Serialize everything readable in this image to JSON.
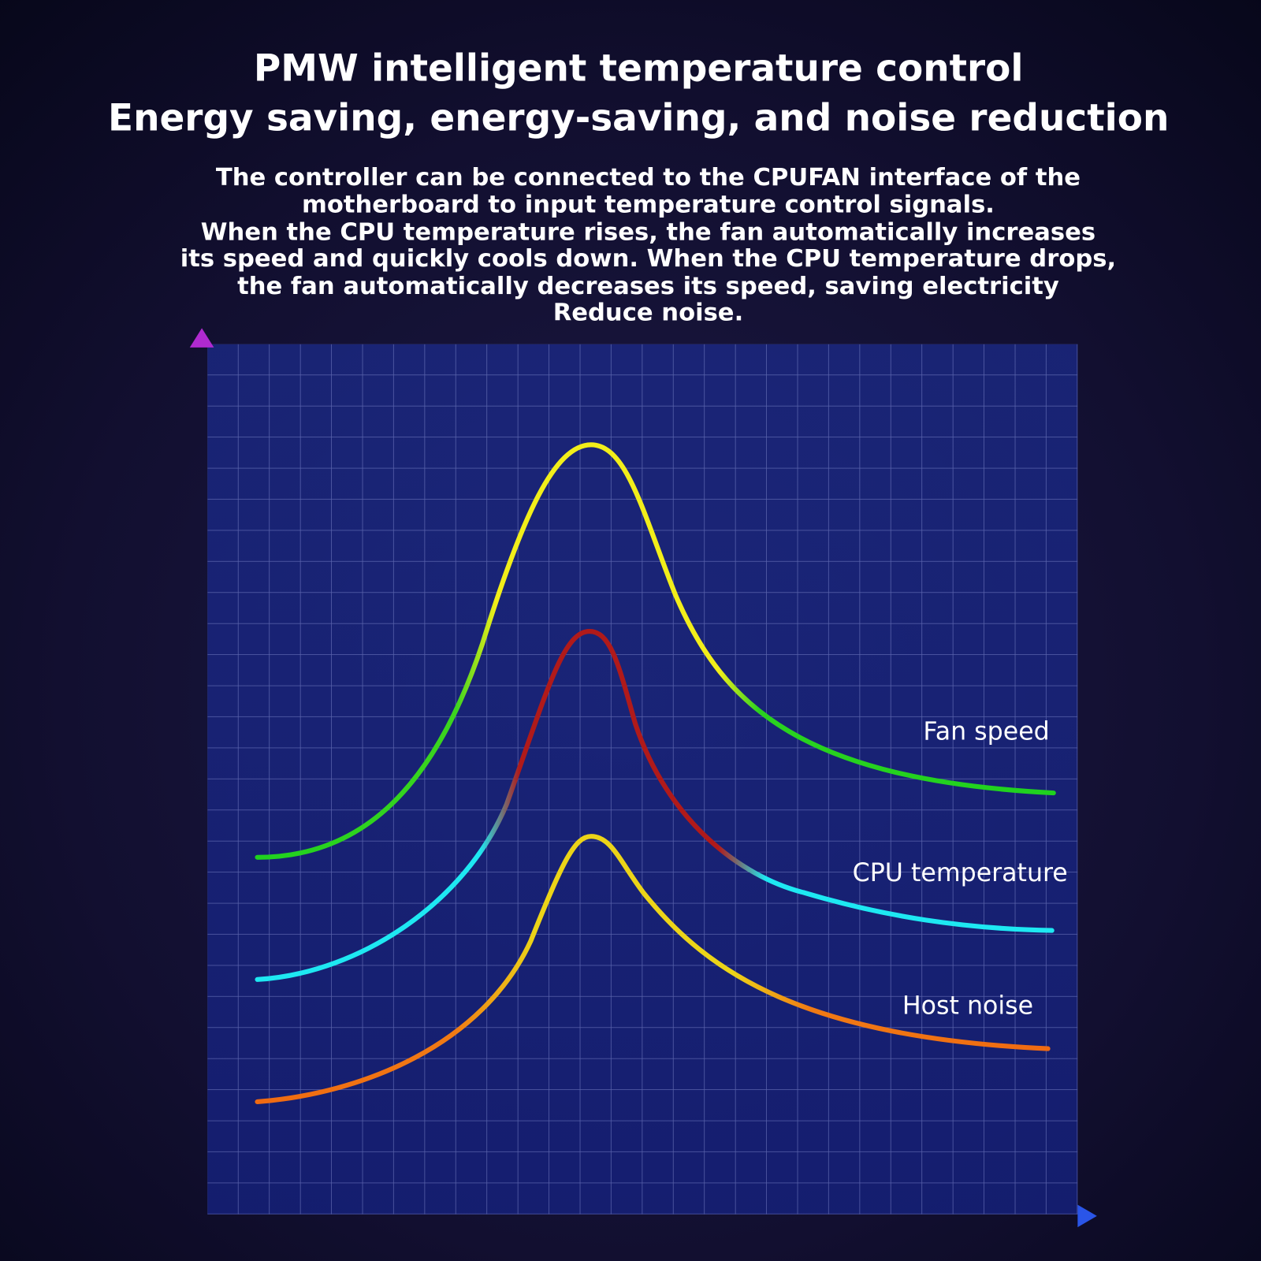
{
  "header": {
    "title": [
      "PMW intelligent temperature control",
      "Energy saving, energy-saving, and noise reduction"
    ],
    "description": [
      "The controller can be connected to the CPUFAN interface of the",
      "motherboard to input temperature control signals.",
      "When the CPU temperature rises, the fan automatically increases",
      "its speed and quickly cools down. When the CPU temperature drops,",
      "the fan automatically decreases its speed, saving electricity",
      "Reduce noise."
    ]
  },
  "diagram": {
    "curves": [
      {
        "label": "Fan speed"
      },
      {
        "label": "CPU temperature"
      },
      {
        "label": "Host noise"
      }
    ]
  }
}
